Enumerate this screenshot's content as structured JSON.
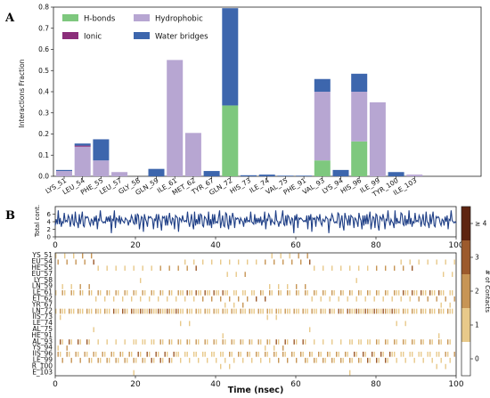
{
  "figure": {
    "panel_a_label": "A",
    "panel_b_label": "B"
  },
  "chart_data": [
    {
      "type": "bar",
      "panel": "A",
      "ylabel": "Interactions Fraction",
      "ylim": [
        0,
        0.8
      ],
      "yticks": [
        "0.0",
        "0.1",
        "0.2",
        "0.3",
        "0.4",
        "0.5",
        "0.6",
        "0.7",
        "0.8"
      ],
      "grid": false,
      "legend_position": "top-left",
      "categories": [
        "LYS_51",
        "LEU_54",
        "PHE_55",
        "LEU_57",
        "GLY_58",
        "GLN_59",
        "ILE_61",
        "MET_62",
        "TYR_67",
        "GLN_72",
        "HIS_73",
        "ILE_74",
        "VAL_75",
        "PHE_91",
        "VAL_93",
        "LYS_94",
        "HIS_96",
        "ILE_99",
        "TYR_100",
        "ILE_103"
      ],
      "series": [
        {
          "name": "H-bonds",
          "color": "#7ec87e",
          "values": [
            0,
            0,
            0,
            0,
            0,
            0,
            0,
            0,
            0,
            0.335,
            0,
            0,
            0,
            0,
            0.075,
            0,
            0.165,
            0,
            0,
            0
          ]
        },
        {
          "name": "Hydrophobic",
          "color": "#b7a6d2",
          "values": [
            0.025,
            0.14,
            0.075,
            0.02,
            0,
            0,
            0.55,
            0.205,
            0,
            0,
            0,
            0,
            0,
            0,
            0.325,
            0,
            0.235,
            0.35,
            0,
            0.008
          ]
        },
        {
          "name": "Ionic",
          "color": "#8b2e7a",
          "values": [
            0,
            0.005,
            0,
            0,
            0,
            0,
            0,
            0,
            0,
            0,
            0,
            0,
            0,
            0,
            0,
            0,
            0,
            0,
            0,
            0
          ]
        },
        {
          "name": "Water bridges",
          "color": "#3d66ad",
          "values": [
            0.005,
            0.01,
            0.1,
            0,
            0,
            0.035,
            0,
            0,
            0.025,
            0.46,
            0.005,
            0.008,
            0.003,
            0.003,
            0.06,
            0.03,
            0.085,
            0,
            0.02,
            0
          ]
        }
      ]
    },
    {
      "type": "line",
      "panel": "B-top",
      "ylabel": "Total cont.",
      "xlim": [
        0,
        100
      ],
      "ylim": [
        0,
        8
      ],
      "xticks": [
        "0",
        "20",
        "40",
        "60",
        "80",
        "100"
      ],
      "yticks": [
        "0",
        "2",
        "4",
        "6"
      ],
      "line_color": "#1f3f86",
      "series": [
        {
          "name": "",
          "y_pattern": [
            4,
            5,
            3,
            6,
            4,
            5,
            2,
            5,
            4,
            6,
            3,
            5,
            4,
            5,
            6,
            3,
            4,
            5,
            4,
            3,
            6,
            5,
            4,
            2,
            5,
            4,
            5,
            6,
            4,
            3,
            5,
            4,
            6,
            5,
            3,
            4,
            5,
            4,
            2,
            6,
            4,
            5,
            3,
            5,
            4,
            6,
            5,
            4,
            3,
            5
          ]
        }
      ]
    },
    {
      "type": "heatmap",
      "panel": "B-bottom",
      "xlabel": "Time (nsec)",
      "xlim": [
        0,
        100
      ],
      "xticks": [
        "0",
        "20",
        "40",
        "60",
        "80",
        "100"
      ],
      "rows": [
        "YS_51",
        "EU_54",
        "HE_55",
        "EU_57",
        "LY_58",
        "LN_59",
        "LE_61",
        "ET_62",
        "YR_67",
        "LN_72",
        "IIS_73",
        "LE_74",
        "AL_75",
        "HE_91",
        "AL_93",
        "YS_94",
        "IIS_96",
        "LE_99",
        "R_100",
        "E_103"
      ],
      "row_occupancy": [
        0.05,
        0.15,
        0.12,
        0.03,
        0.01,
        0.05,
        0.55,
        0.2,
        0.03,
        0.8,
        0.02,
        0.02,
        0.01,
        0.01,
        0.45,
        0.03,
        0.5,
        0.35,
        0.02,
        0.01
      ],
      "colorbar_label": "# of Contacts",
      "colorbar_ticks": [
        "0",
        "1",
        "2",
        "3",
        "≥ 4"
      ],
      "colorbar_colors": [
        "#ffffff",
        "#e8c98a",
        "#c79555",
        "#9c5a2c",
        "#5e2410"
      ]
    }
  ]
}
